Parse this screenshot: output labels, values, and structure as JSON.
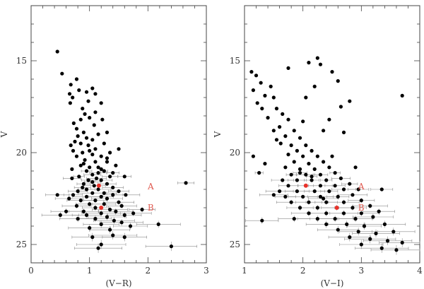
{
  "chart_data": [
    {
      "type": "scatter",
      "xlabel": "(V−R)",
      "ylabel": "V",
      "xlim": [
        0,
        3
      ],
      "ylim": [
        26,
        12
      ],
      "inverted_y": true,
      "x_ticks": [
        0,
        1,
        2,
        3
      ],
      "y_ticks": [
        15,
        20,
        25
      ],
      "grid": false,
      "colors": {
        "points": "#000000",
        "errorbars": "#8c8c8c",
        "highlight": "#e8322a",
        "annotation": "#e05a50"
      },
      "annotations": [
        {
          "text": "A",
          "x": 2.0,
          "y": 21.85
        },
        {
          "text": "B",
          "x": 2.0,
          "y": 23.0
        }
      ],
      "highlight_points": [
        {
          "label": "A",
          "x": 1.16,
          "y": 21.8
        },
        {
          "label": "B",
          "x": 1.2,
          "y": 23.0
        }
      ],
      "points": [
        [
          0.45,
          14.5
        ],
        [
          0.53,
          15.7
        ],
        [
          0.68,
          16.3
        ],
        [
          0.78,
          16.0
        ],
        [
          0.82,
          16.6
        ],
        [
          0.66,
          16.8
        ],
        [
          0.71,
          17.0
        ],
        [
          0.67,
          17.3
        ],
        [
          0.95,
          16.7
        ],
        [
          1.05,
          16.5
        ],
        [
          1.1,
          16.8
        ],
        [
          1.2,
          17.3
        ],
        [
          0.98,
          17.2
        ],
        [
          0.88,
          17.6
        ],
        [
          0.92,
          17.9
        ],
        [
          1.0,
          18.1
        ],
        [
          1.1,
          17.8
        ],
        [
          1.08,
          18.5
        ],
        [
          1.22,
          18.2
        ],
        [
          0.85,
          18.2
        ],
        [
          0.73,
          18.4
        ],
        [
          0.78,
          18.7
        ],
        [
          0.9,
          18.9
        ],
        [
          0.8,
          19.1
        ],
        [
          0.95,
          19.2
        ],
        [
          1.15,
          19.0
        ],
        [
          1.3,
          18.9
        ],
        [
          1.05,
          19.3
        ],
        [
          0.75,
          19.4
        ],
        [
          0.85,
          19.5
        ],
        [
          0.68,
          19.6
        ],
        [
          0.98,
          19.6
        ],
        [
          1.25,
          19.5
        ],
        [
          1.1,
          19.8
        ],
        [
          1.5,
          19.8
        ],
        [
          0.72,
          19.9
        ],
        [
          0.88,
          20.0
        ],
        [
          1.05,
          20.1
        ],
        [
          1.2,
          20.2
        ],
        [
          1.35,
          20.0
        ],
        [
          0.78,
          20.2
        ],
        [
          0.92,
          20.4
        ],
        [
          1.1,
          20.5
        ],
        [
          1.3,
          20.5
        ],
        [
          0.85,
          20.7
        ],
        [
          1.0,
          20.8
        ],
        [
          1.15,
          20.8
        ],
        [
          1.45,
          20.7
        ],
        [
          0.7,
          20.9
        ],
        [
          0.95,
          21.0
        ],
        [
          1.25,
          21.0
        ],
        [
          1.05,
          21.2
        ],
        [
          1.4,
          21.1
        ],
        [
          0.82,
          21.3
        ],
        [
          1.12,
          21.4
        ],
        [
          1.35,
          21.3
        ],
        [
          0.98,
          21.5
        ],
        [
          1.2,
          21.5
        ],
        [
          0.7,
          21.4
        ],
        [
          1.6,
          21.3
        ],
        [
          0.9,
          21.7
        ],
        [
          1.08,
          21.8
        ],
        [
          1.3,
          21.7
        ],
        [
          0.95,
          22.0
        ],
        [
          1.15,
          22.0
        ],
        [
          1.4,
          21.9
        ],
        [
          0.8,
          22.1
        ],
        [
          1.05,
          22.2
        ],
        [
          1.25,
          22.2
        ],
        [
          1.5,
          22.1
        ],
        [
          0.72,
          22.3
        ],
        [
          0.95,
          22.4
        ],
        [
          1.2,
          22.4
        ],
        [
          1.4,
          22.3
        ],
        [
          1.62,
          22.3
        ],
        [
          0.85,
          22.6
        ],
        [
          1.1,
          22.6
        ],
        [
          1.3,
          22.5
        ],
        [
          0.65,
          22.5
        ],
        [
          1.0,
          22.8
        ],
        [
          1.25,
          22.8
        ],
        [
          1.5,
          22.7
        ],
        [
          0.78,
          22.9
        ],
        [
          1.1,
          23.0
        ],
        [
          1.35,
          23.1
        ],
        [
          1.55,
          22.9
        ],
        [
          0.9,
          23.2
        ],
        [
          1.2,
          23.3
        ],
        [
          1.45,
          23.2
        ],
        [
          0.6,
          23.2
        ],
        [
          0.95,
          23.4
        ],
        [
          1.3,
          23.5
        ],
        [
          1.6,
          23.4
        ],
        [
          1.1,
          23.6
        ],
        [
          1.42,
          23.7
        ],
        [
          0.8,
          23.6
        ],
        [
          1.2,
          23.9
        ],
        [
          1.55,
          23.8
        ],
        [
          1.0,
          24.1
        ],
        [
          1.35,
          24.2
        ],
        [
          1.7,
          24.0
        ],
        [
          0.5,
          23.4
        ],
        [
          0.45,
          22.3
        ],
        [
          1.05,
          24.6
        ],
        [
          1.4,
          24.5
        ],
        [
          1.2,
          25.0
        ],
        [
          1.15,
          25.2
        ],
        [
          2.18,
          23.9
        ],
        [
          2.4,
          25.1
        ],
        [
          2.65,
          21.65
        ],
        [
          1.9,
          23.1
        ],
        [
          1.75,
          23.3
        ],
        [
          1.6,
          24.6
        ],
        [
          0.88,
          21.9
        ],
        [
          1.15,
          21.1
        ],
        [
          1.0,
          19.9
        ],
        [
          1.3,
          20.3
        ],
        [
          1.2,
          20.9
        ],
        [
          0.9,
          20.6
        ],
        [
          1.05,
          21.6
        ]
      ]
    },
    {
      "type": "scatter",
      "xlabel": "(V−I)",
      "ylabel": "V",
      "xlim": [
        1,
        4
      ],
      "ylim": [
        26,
        12
      ],
      "inverted_y": true,
      "x_ticks": [
        1,
        2,
        3,
        4
      ],
      "y_ticks": [
        15,
        20,
        25
      ],
      "grid": false,
      "colors": {
        "points": "#000000",
        "errorbars": "#8c8c8c",
        "highlight": "#e8322a",
        "annotation": "#e05a50"
      },
      "annotations": [
        {
          "text": "A",
          "x": 2.95,
          "y": 21.85
        },
        {
          "text": "B",
          "x": 2.95,
          "y": 23.0
        }
      ],
      "highlight_points": [
        {
          "label": "A",
          "x": 2.05,
          "y": 21.8
        },
        {
          "label": "B",
          "x": 2.58,
          "y": 23.0
        }
      ],
      "points": [
        [
          1.12,
          15.6
        ],
        [
          1.2,
          15.8
        ],
        [
          1.28,
          16.2
        ],
        [
          1.15,
          16.6
        ],
        [
          1.35,
          16.9
        ],
        [
          1.45,
          16.4
        ],
        [
          1.5,
          17.0
        ],
        [
          1.22,
          17.3
        ],
        [
          1.3,
          17.6
        ],
        [
          1.55,
          17.6
        ],
        [
          1.65,
          17.9
        ],
        [
          1.4,
          18.1
        ],
        [
          1.75,
          18.2
        ],
        [
          1.6,
          18.6
        ],
        [
          1.5,
          18.8
        ],
        [
          1.85,
          18.8
        ],
        [
          1.7,
          19.1
        ],
        [
          1.95,
          19.2
        ],
        [
          1.62,
          19.5
        ],
        [
          1.8,
          19.6
        ],
        [
          2.05,
          19.6
        ],
        [
          1.9,
          19.9
        ],
        [
          2.15,
          19.9
        ],
        [
          1.75,
          20.1
        ],
        [
          2.0,
          20.2
        ],
        [
          2.25,
          20.2
        ],
        [
          1.85,
          20.5
        ],
        [
          2.1,
          20.6
        ],
        [
          2.35,
          20.5
        ],
        [
          1.7,
          20.8
        ],
        [
          1.95,
          20.9
        ],
        [
          2.2,
          20.9
        ],
        [
          2.45,
          20.8
        ],
        [
          1.8,
          21.2
        ],
        [
          2.05,
          21.2
        ],
        [
          2.3,
          21.2
        ],
        [
          2.55,
          21.1
        ],
        [
          1.65,
          21.5
        ],
        [
          1.9,
          21.5
        ],
        [
          2.15,
          21.5
        ],
        [
          2.4,
          21.5
        ],
        [
          2.65,
          21.4
        ],
        [
          1.75,
          21.8
        ],
        [
          2.05,
          21.8
        ],
        [
          2.3,
          21.8
        ],
        [
          2.55,
          21.8
        ],
        [
          2.8,
          21.7
        ],
        [
          1.6,
          22.1
        ],
        [
          1.9,
          22.1
        ],
        [
          2.2,
          22.1
        ],
        [
          2.45,
          22.1
        ],
        [
          2.7,
          22.0
        ],
        [
          2.95,
          22.0
        ],
        [
          1.7,
          22.4
        ],
        [
          2.0,
          22.4
        ],
        [
          2.3,
          22.4
        ],
        [
          2.6,
          22.4
        ],
        [
          2.85,
          22.3
        ],
        [
          1.8,
          22.7
        ],
        [
          2.1,
          22.7
        ],
        [
          2.4,
          22.7
        ],
        [
          2.7,
          22.7
        ],
        [
          3.0,
          22.6
        ],
        [
          1.95,
          23.0
        ],
        [
          2.25,
          23.0
        ],
        [
          2.58,
          23.0
        ],
        [
          2.85,
          23.0
        ],
        [
          3.15,
          22.9
        ],
        [
          2.1,
          23.3
        ],
        [
          2.4,
          23.3
        ],
        [
          2.7,
          23.3
        ],
        [
          3.0,
          23.3
        ],
        [
          3.3,
          23.2
        ],
        [
          1.85,
          23.6
        ],
        [
          2.25,
          23.6
        ],
        [
          2.55,
          23.6
        ],
        [
          2.9,
          23.6
        ],
        [
          3.2,
          23.5
        ],
        [
          2.4,
          23.9
        ],
        [
          2.75,
          23.9
        ],
        [
          3.05,
          24.0
        ],
        [
          3.4,
          23.9
        ],
        [
          2.6,
          24.2
        ],
        [
          2.95,
          24.3
        ],
        [
          3.25,
          24.4
        ],
        [
          3.55,
          24.3
        ],
        [
          2.8,
          24.6
        ],
        [
          3.15,
          24.7
        ],
        [
          3.45,
          24.8
        ],
        [
          3.7,
          24.9
        ],
        [
          3.0,
          25.0
        ],
        [
          3.35,
          25.2
        ],
        [
          3.6,
          25.3
        ],
        [
          1.3,
          23.7
        ],
        [
          1.5,
          22.3
        ],
        [
          3.35,
          22.0
        ],
        [
          3.7,
          16.9
        ],
        [
          2.25,
          14.85
        ],
        [
          2.3,
          15.2
        ],
        [
          2.1,
          15.1
        ],
        [
          1.75,
          15.4
        ],
        [
          2.5,
          15.6
        ],
        [
          2.6,
          16.1
        ],
        [
          2.2,
          16.4
        ],
        [
          2.05,
          17.0
        ],
        [
          2.65,
          17.5
        ],
        [
          2.8,
          17.2
        ],
        [
          2.45,
          18.2
        ],
        [
          2.35,
          18.8
        ],
        [
          2.7,
          18.9
        ],
        [
          1.25,
          21.1
        ],
        [
          1.35,
          20.6
        ],
        [
          1.15,
          20.2
        ],
        [
          2.15,
          21.3
        ],
        [
          2.35,
          22.5
        ],
        [
          1.95,
          21.1
        ],
        [
          2.5,
          20.2
        ],
        [
          2.9,
          20.8
        ],
        [
          2.0,
          18.3
        ],
        [
          1.55,
          19.3
        ]
      ]
    }
  ]
}
